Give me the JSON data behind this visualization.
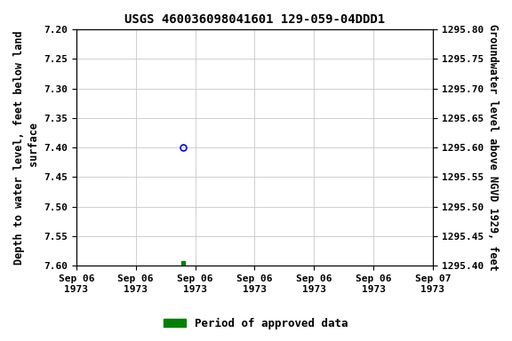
{
  "title": "USGS 460036098041601 129-059-04DDD1",
  "ylabel_left": "Depth to water level, feet below land\n surface",
  "ylabel_right": "Groundwater level above NGVD 1929, feet",
  "ylim_left": [
    7.6,
    7.2
  ],
  "ylim_right": [
    1295.4,
    1295.8
  ],
  "yticks_left": [
    7.2,
    7.25,
    7.3,
    7.35,
    7.4,
    7.45,
    7.5,
    7.55,
    7.6
  ],
  "yticks_right": [
    1295.8,
    1295.75,
    1295.7,
    1295.65,
    1295.6,
    1295.55,
    1295.5,
    1295.45,
    1295.4
  ],
  "unapproved_x_hours": 7.2,
  "unapproved_y": 7.4,
  "approved_x_hours": 7.2,
  "approved_y": 7.595,
  "x_tick_hours": [
    0,
    4,
    8,
    12,
    16,
    20,
    24
  ],
  "x_tick_labels": [
    "Sep 06\n1973",
    "Sep 06\n1973",
    "Sep 06\n1973",
    "Sep 06\n1973",
    "Sep 06\n1973",
    "Sep 06\n1973",
    "Sep 07\n1973"
  ],
  "legend_label": "Period of approved data",
  "legend_color": "#008000",
  "unapproved_color": "#0000ff",
  "approved_color": "#008000",
  "background_color": "#ffffff",
  "grid_color": "#c8c8c8",
  "title_fontsize": 10,
  "tick_fontsize": 8,
  "label_fontsize": 8.5
}
